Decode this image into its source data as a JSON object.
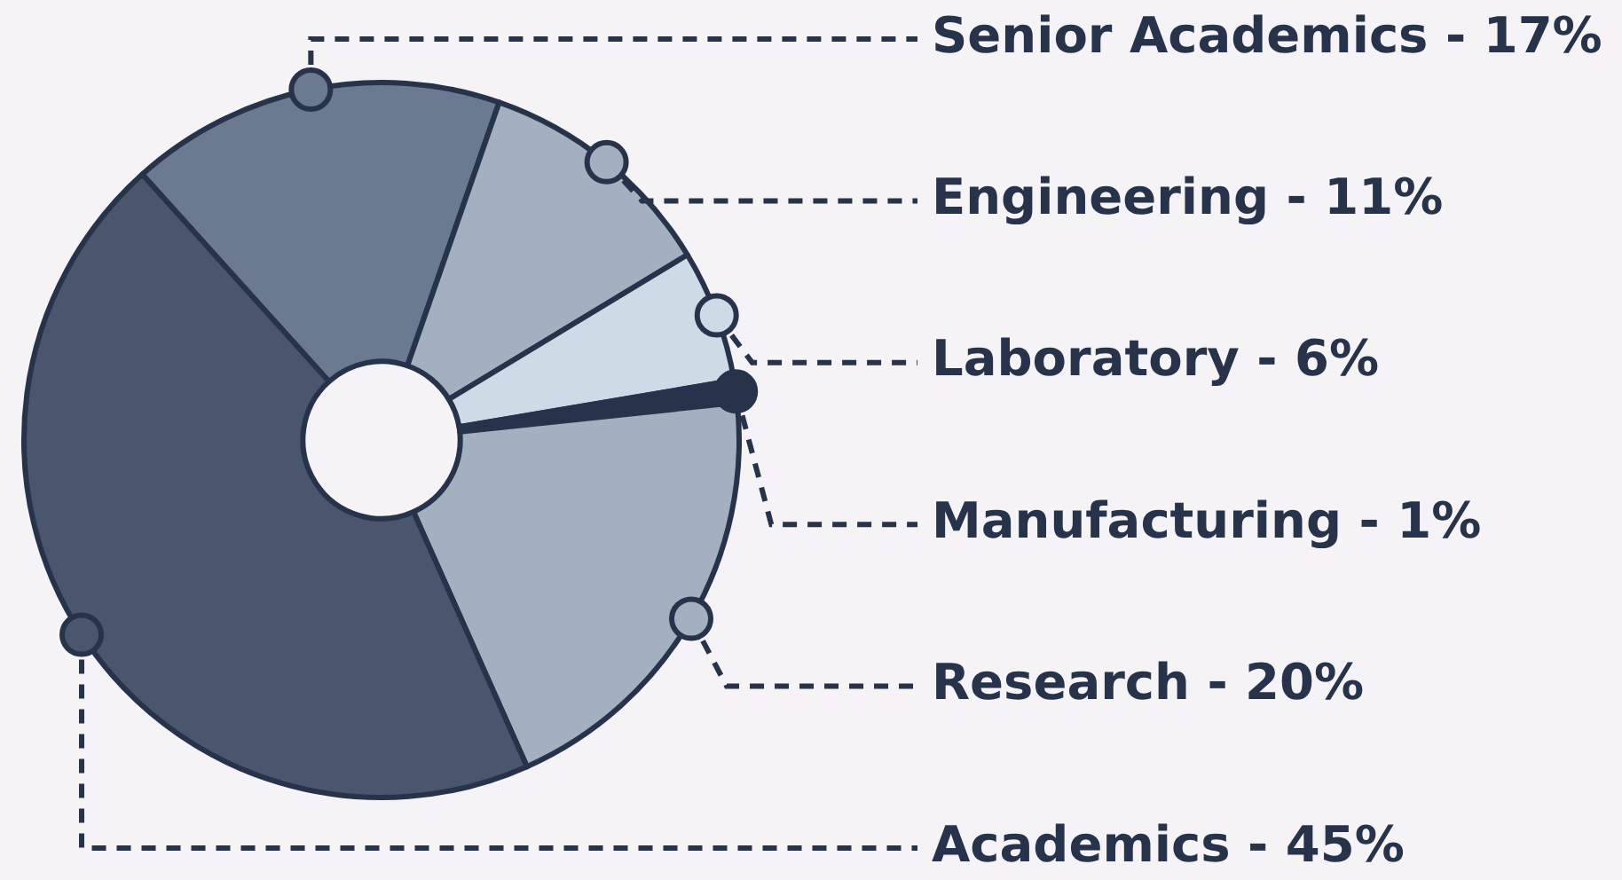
{
  "chart_data": {
    "type": "donut",
    "categories": [
      "Senior Academics",
      "Engineering",
      "Laboratory",
      "Manufacturing",
      "Research",
      "Academics"
    ],
    "values": [
      17,
      11,
      6,
      1,
      20,
      45
    ],
    "value_labels": [
      "17%",
      "11%",
      "6%",
      "1%",
      "20%",
      "45%"
    ],
    "colors": [
      "#6b7a90",
      "#a3b0bf",
      "#cddbe6",
      "#27334a",
      "#a3b0bf",
      "#4a566e"
    ],
    "legend": false
  }
}
